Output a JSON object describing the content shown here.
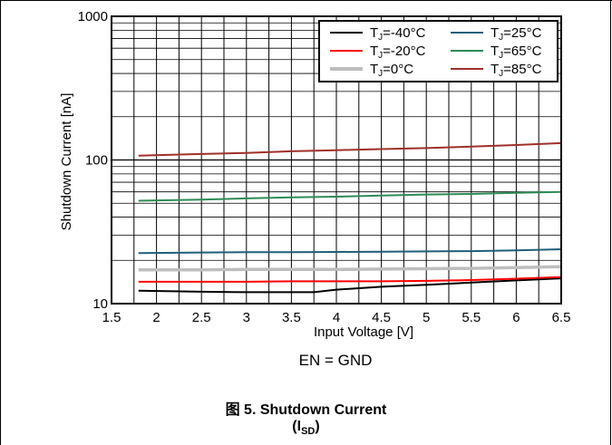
{
  "figure": {
    "condition_label": "EN = GND",
    "caption_prefix": "图 5. Shutdown Current",
    "caption_symbol_main": "I",
    "caption_symbol_sub": "SD"
  },
  "chart_data": {
    "type": "line",
    "title": "",
    "xlabel": "Input Voltage [V]",
    "ylabel": "Shutdown Current [nA]",
    "xlim": [
      1.5,
      6.5
    ],
    "ylim": [
      10,
      1000
    ],
    "yscale": "log",
    "grid": true,
    "legend_position": "top-right",
    "x_ticks": [
      "1.5",
      "2",
      "2.5",
      "3",
      "3.5",
      "4",
      "4.5",
      "5",
      "5.5",
      "6",
      "6.5"
    ],
    "y_ticks": [
      "10",
      "100",
      "1000"
    ],
    "series": [
      {
        "name": "T",
        "name_sub": "J",
        "name_suffix": "=-40°C",
        "color": "#000000",
        "x": [
          1.8,
          2.5,
          3.0,
          3.5,
          3.75,
          4.0,
          4.5,
          5.0,
          5.5,
          6.0,
          6.5
        ],
        "y": [
          12.3,
          12.1,
          12.0,
          12.0,
          12.0,
          12.5,
          13.1,
          13.5,
          14.0,
          14.5,
          15.0
        ]
      },
      {
        "name": "T",
        "name_sub": "J",
        "name_suffix": "=-20°C",
        "color": "#ff0000",
        "x": [
          1.8,
          2.5,
          3.0,
          3.5,
          4.0,
          4.5,
          5.0,
          5.5,
          6.0,
          6.5
        ],
        "y": [
          14.2,
          14.2,
          14.2,
          14.3,
          14.3,
          14.3,
          14.4,
          14.6,
          14.9,
          15.3
        ]
      },
      {
        "name": "T",
        "name_sub": "J",
        "name_suffix": "=0°C",
        "color": "#bebebe",
        "x": [
          1.8,
          2.5,
          3.0,
          3.5,
          4.0,
          4.5,
          5.0,
          5.5,
          6.0,
          6.5
        ],
        "y": [
          17.2,
          17.2,
          17.3,
          17.3,
          17.3,
          17.4,
          17.5,
          17.6,
          17.8,
          18.1
        ]
      },
      {
        "name": "T",
        "name_sub": "J",
        "name_suffix": "=25°C",
        "color": "#1f5f7a",
        "x": [
          1.8,
          2.5,
          3.0,
          3.5,
          4.0,
          4.5,
          5.0,
          5.5,
          6.0,
          6.5
        ],
        "y": [
          22.5,
          22.7,
          22.8,
          22.8,
          22.9,
          23.0,
          23.1,
          23.2,
          23.5,
          23.9
        ]
      },
      {
        "name": "T",
        "name_sub": "J",
        "name_suffix": "=65°C",
        "color": "#2e8b57",
        "x": [
          1.8,
          2.5,
          3.0,
          3.5,
          4.0,
          4.5,
          5.0,
          5.5,
          6.0,
          6.5
        ],
        "y": [
          52,
          53,
          54,
          55,
          55.5,
          56.5,
          57.5,
          58,
          59,
          60
        ]
      },
      {
        "name": "T",
        "name_sub": "J",
        "name_suffix": "=85°C",
        "color": "#a0302a",
        "x": [
          1.8,
          2.5,
          3.0,
          3.5,
          4.0,
          4.5,
          5.0,
          5.5,
          6.0,
          6.5
        ],
        "y": [
          107,
          110,
          112,
          115,
          117,
          119,
          121,
          124,
          127,
          131
        ]
      }
    ]
  }
}
